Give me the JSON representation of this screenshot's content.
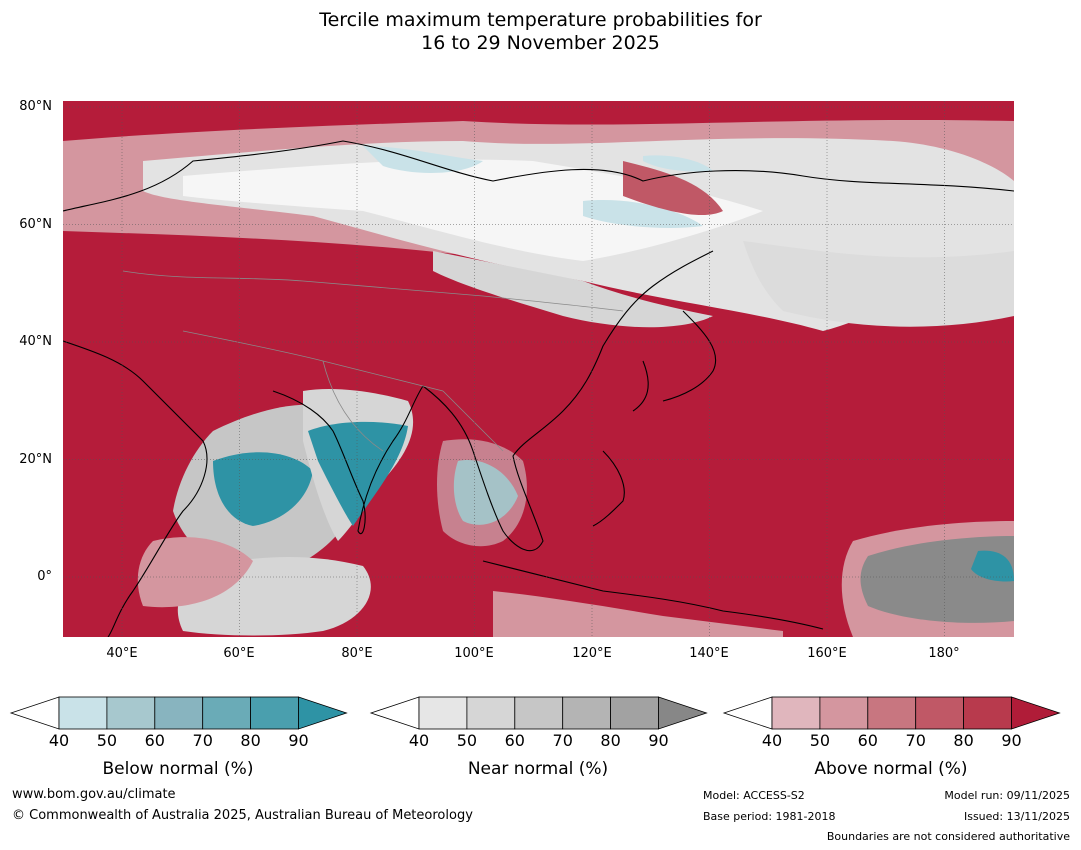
{
  "title": {
    "line1": "Tercile maximum temperature probabilities for",
    "line2": "16 to 29 November 2025"
  },
  "map": {
    "lat_labels": [
      "80°N",
      "60°N",
      "40°N",
      "20°N",
      "0°"
    ],
    "lon_labels": [
      "40°E",
      "60°E",
      "80°E",
      "100°E",
      "120°E",
      "140°E",
      "160°E",
      "180°"
    ]
  },
  "legends": [
    {
      "label": "Below normal (%)",
      "ticks": [
        "40",
        "50",
        "60",
        "70",
        "80",
        "90"
      ],
      "colors": [
        "#ffffff",
        "#c9e2e8",
        "#a7c8ce",
        "#88b4bf",
        "#6aabb7",
        "#4a9fae",
        "#2e93a5"
      ]
    },
    {
      "label": "Near normal (%)",
      "ticks": [
        "40",
        "50",
        "60",
        "70",
        "80",
        "90"
      ],
      "colors": [
        "#ffffff",
        "#e6e6e6",
        "#d6d6d6",
        "#c6c6c6",
        "#b4b4b4",
        "#a2a2a2",
        "#878787"
      ]
    },
    {
      "label": "Above normal (%)",
      "ticks": [
        "40",
        "50",
        "60",
        "70",
        "80",
        "90"
      ],
      "colors": [
        "#ffffff",
        "#e0b6bd",
        "#d4969f",
        "#c87680",
        "#c05866",
        "#b83a4d",
        "#b01c38"
      ]
    }
  ],
  "footer": {
    "website": "www.bom.gov.au/climate",
    "copyright": "© Commonwealth of Australia 2025, Australian Bureau of Meteorology",
    "model": "Model: ACCESS-S2",
    "base_period": "Base period: 1981-2018",
    "model_run": "Model run: 09/11/2025",
    "issued": "Issued: 13/11/2025",
    "boundaries": "Boundaries are not considered authoritative"
  },
  "colors": {
    "above": "#b51c3a",
    "above_light": "#d4969f",
    "near": "#d6d6d6",
    "near_dark": "#8a8a8a",
    "below": "#2e93a5",
    "below_light": "#c9e2e8"
  }
}
